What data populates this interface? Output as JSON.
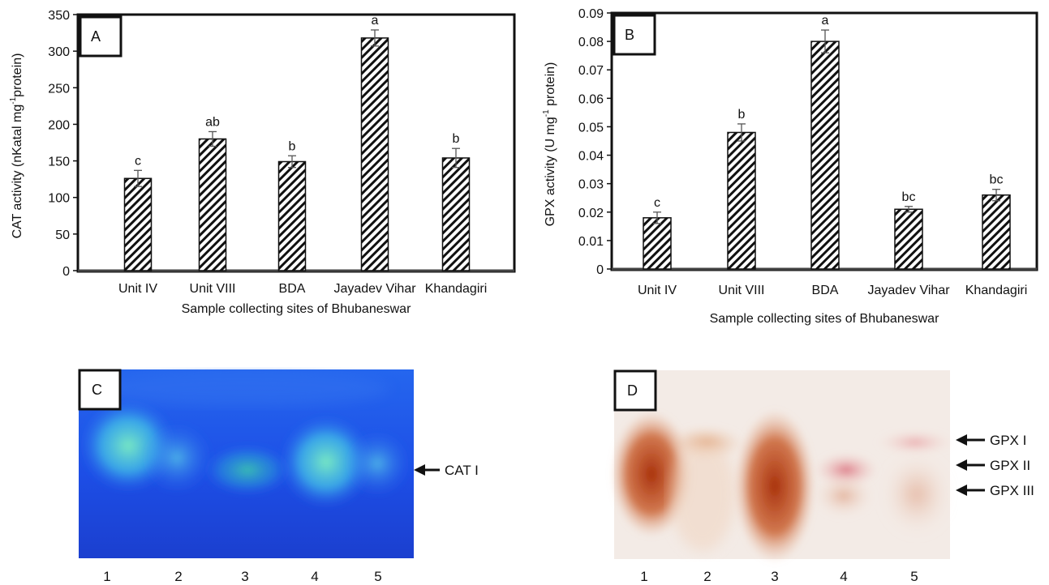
{
  "chart_data": [
    {
      "panel": "A",
      "type": "bar",
      "categories": [
        "Unit IV",
        "Unit VIII",
        "BDA",
        "Jayadev Vihar",
        "Khandagiri"
      ],
      "values": [
        126,
        180,
        149,
        318,
        154
      ],
      "errors": [
        11,
        10,
        8,
        11,
        13
      ],
      "labels": [
        "c",
        "ab",
        "b",
        "a",
        "b"
      ],
      "ylim": [
        0,
        350
      ],
      "yticks": [
        0,
        50,
        100,
        150,
        200,
        250,
        300,
        350
      ],
      "ytick_labels": [
        "0",
        "50",
        "100",
        "150",
        "200",
        "250",
        "300",
        "350"
      ],
      "xlabel": "Sample collecting sites of Bhubaneswar",
      "ylabel_main": "CAT activity (nKatal mg",
      "ylabel_sup": "-1",
      "ylabel_end": "protein)",
      "grid": false,
      "legend": "none"
    },
    {
      "panel": "B",
      "type": "bar",
      "categories": [
        "Unit IV",
        "Unit VIII",
        "BDA",
        "Jayadev Vihar",
        "Khandagiri"
      ],
      "values": [
        0.018,
        0.048,
        0.08,
        0.021,
        0.026
      ],
      "errors": [
        0.002,
        0.003,
        0.004,
        0.001,
        0.002
      ],
      "labels": [
        "c",
        "b",
        "a",
        "bc",
        "bc"
      ],
      "ylim": [
        0,
        0.09
      ],
      "yticks": [
        0,
        0.01,
        0.02,
        0.03,
        0.04,
        0.05,
        0.06,
        0.07,
        0.08,
        0.09
      ],
      "ytick_labels": [
        "0",
        "0.01",
        "0.02",
        "0.03",
        "0.04",
        "0.05",
        "0.06",
        "0.07",
        "0.08",
        "0.09"
      ],
      "xlabel": "Sample collecting sites of Bhubaneswar",
      "ylabel_main": "GPX activity (U mg",
      "ylabel_sup": "-1",
      "ylabel_end": " protein)",
      "grid": false,
      "legend": "none"
    }
  ],
  "gels": {
    "C": {
      "letter": "C",
      "lanes": [
        "1",
        "2",
        "3",
        "4",
        "5"
      ],
      "bands": [
        {
          "label": "CAT I"
        }
      ],
      "background_color": "#1f4ee0",
      "band_color": "#5fe0c8"
    },
    "D": {
      "letter": "D",
      "lanes": [
        "1",
        "2",
        "3",
        "4",
        "5"
      ],
      "bands": [
        {
          "label": "GPX I"
        },
        {
          "label": "GPX II"
        },
        {
          "label": "GPX III"
        }
      ],
      "background_color": "#f4ece6",
      "band_color": "#b23a12"
    }
  }
}
